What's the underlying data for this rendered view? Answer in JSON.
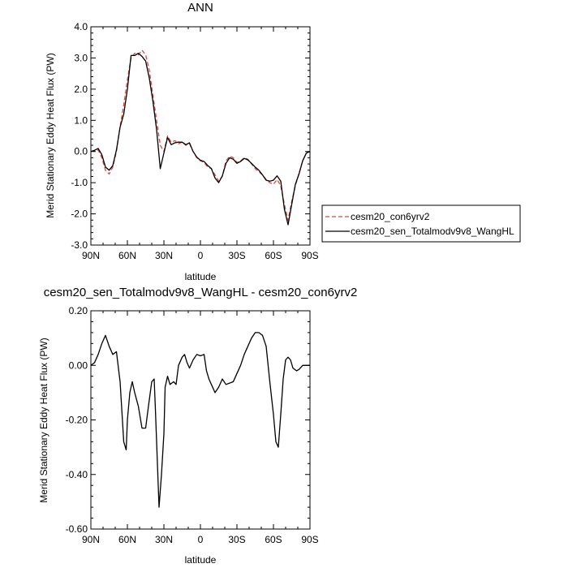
{
  "chart_data": [
    {
      "type": "line",
      "title": "ANN",
      "xlabel": "latitude",
      "ylabel": "Merid Stationary Eddy Heat Flux (PW)",
      "xlim": [
        90,
        -90
      ],
      "ylim": [
        -3.0,
        4.0
      ],
      "x_ticks": [
        90,
        60,
        30,
        0,
        -30,
        -60,
        -90
      ],
      "x_tick_labels": [
        "90N",
        "60N",
        "30N",
        "0",
        "30S",
        "60S",
        "90S"
      ],
      "y_ticks": [
        -3.0,
        -2.0,
        -1.0,
        0.0,
        1.0,
        2.0,
        3.0,
        4.0
      ],
      "y_tick_labels": [
        "-3.0",
        "-2.0",
        "-1.0",
        "0.0",
        "1.0",
        "2.0",
        "3.0",
        "4.0"
      ],
      "legend_position": "right",
      "series": [
        {
          "name": "cesm20_con6yrv2",
          "color": "#e8423c",
          "dash": "dashed",
          "x": [
            90,
            87,
            84,
            81,
            78,
            75,
            72,
            69,
            66,
            63,
            60,
            57,
            54,
            51,
            48,
            45,
            42,
            39,
            36,
            33,
            30,
            27,
            24,
            21,
            18,
            15,
            12,
            9,
            6,
            3,
            0,
            -3,
            -6,
            -9,
            -12,
            -15,
            -18,
            -21,
            -24,
            -27,
            -30,
            -33,
            -36,
            -39,
            -42,
            -45,
            -48,
            -51,
            -54,
            -57,
            -60,
            -63,
            -66,
            -69,
            -72,
            -75,
            -78,
            -81,
            -84,
            -87,
            -90
          ],
          "y": [
            0.0,
            0.02,
            0.05,
            -0.2,
            -0.6,
            -0.72,
            -0.5,
            0.0,
            0.8,
            1.5,
            2.3,
            3.0,
            3.15,
            3.1,
            3.25,
            3.1,
            2.6,
            1.8,
            1.0,
            0.2,
            0.0,
            0.5,
            0.3,
            0.35,
            0.25,
            0.3,
            0.2,
            0.25,
            0.0,
            -0.2,
            -0.3,
            -0.35,
            -0.5,
            -0.55,
            -0.75,
            -0.95,
            -0.8,
            -0.3,
            -0.15,
            -0.2,
            -0.35,
            -0.3,
            -0.2,
            -0.25,
            -0.4,
            -0.55,
            -0.65,
            -0.75,
            -0.9,
            -1.0,
            -1.05,
            -0.9,
            -1.1,
            -1.7,
            -2.2,
            -1.6,
            -1.1,
            -0.7,
            -0.3,
            -0.05,
            0.0
          ]
        },
        {
          "name": "cesm20_sen_Totalmodv9v8_WangHL",
          "color": "#000000",
          "dash": "solid",
          "x": [
            90,
            87,
            84,
            81,
            78,
            75,
            72,
            69,
            66,
            63,
            60,
            57,
            54,
            51,
            48,
            45,
            42,
            39,
            36,
            33,
            30,
            27,
            24,
            21,
            18,
            15,
            12,
            9,
            6,
            3,
            0,
            -3,
            -6,
            -9,
            -12,
            -15,
            -18,
            -21,
            -24,
            -27,
            -30,
            -33,
            -36,
            -39,
            -42,
            -45,
            -48,
            -51,
            -54,
            -57,
            -60,
            -63,
            -66,
            -69,
            -72,
            -75,
            -78,
            -81,
            -84,
            -87,
            -90
          ],
          "y": [
            0.0,
            0.04,
            0.1,
            -0.1,
            -0.5,
            -0.6,
            -0.45,
            0.05,
            0.78,
            1.2,
            2.0,
            3.08,
            3.08,
            3.15,
            3.05,
            2.9,
            2.35,
            1.6,
            0.7,
            -0.55,
            -0.05,
            0.45,
            0.22,
            0.28,
            0.3,
            0.3,
            0.22,
            0.28,
            0.0,
            -0.18,
            -0.28,
            -0.32,
            -0.45,
            -0.55,
            -0.85,
            -1.0,
            -0.78,
            -0.38,
            -0.2,
            -0.25,
            -0.38,
            -0.32,
            -0.22,
            -0.27,
            -0.38,
            -0.5,
            -0.6,
            -0.75,
            -0.92,
            -0.95,
            -0.92,
            -0.78,
            -0.95,
            -1.85,
            -2.35,
            -1.7,
            -1.05,
            -0.72,
            -0.3,
            -0.05,
            0.0
          ]
        }
      ]
    },
    {
      "type": "line",
      "title": "cesm20_sen_Totalmodv9v8_WangHL - cesm20_con6yrv2",
      "xlabel": "latitude",
      "ylabel": "Merid Stationary Eddy Heat Flux (PW)",
      "xlim": [
        90,
        -90
      ],
      "ylim": [
        -0.6,
        0.2
      ],
      "x_ticks": [
        90,
        60,
        30,
        0,
        -30,
        -60,
        -90
      ],
      "x_tick_labels": [
        "90N",
        "60N",
        "30N",
        "0",
        "30S",
        "60S",
        "90S"
      ],
      "y_ticks": [
        -0.6,
        -0.4,
        -0.2,
        0.0,
        0.2
      ],
      "y_tick_labels": [
        "-0.60",
        "-0.40",
        "-0.20",
        "0.00",
        "0.20"
      ],
      "series": [
        {
          "color": "#000000",
          "dash": "solid",
          "x": [
            90,
            87,
            84,
            81,
            78,
            75,
            72,
            69,
            66,
            63,
            61,
            60,
            58,
            57,
            56,
            54,
            51,
            48,
            45,
            43,
            40,
            38,
            37,
            35,
            34,
            32,
            30,
            29,
            27,
            25,
            22,
            20,
            18,
            15,
            13,
            11,
            9,
            6,
            3,
            0,
            -3,
            -5,
            -7,
            -9,
            -12,
            -15,
            -18,
            -21,
            -24,
            -27,
            -30,
            -33,
            -36,
            -39,
            -42,
            -45,
            -48,
            -51,
            -54,
            -57,
            -60,
            -62,
            -64,
            -66,
            -68,
            -70,
            -72,
            -74,
            -76,
            -79,
            -81,
            -84,
            -87,
            -90
          ],
          "y": [
            0.0,
            0.01,
            0.04,
            0.08,
            0.11,
            0.07,
            0.04,
            0.05,
            -0.06,
            -0.28,
            -0.31,
            -0.2,
            -0.1,
            -0.08,
            -0.06,
            -0.1,
            -0.15,
            -0.23,
            -0.23,
            -0.16,
            -0.06,
            -0.05,
            -0.16,
            -0.4,
            -0.52,
            -0.4,
            -0.25,
            -0.08,
            -0.04,
            -0.07,
            -0.06,
            -0.07,
            0.0,
            0.03,
            0.04,
            0.01,
            -0.01,
            0.02,
            0.04,
            0.035,
            0.04,
            -0.02,
            -0.05,
            -0.07,
            -0.1,
            -0.08,
            -0.05,
            -0.07,
            -0.065,
            -0.06,
            -0.03,
            0.0,
            0.04,
            0.07,
            0.1,
            0.12,
            0.12,
            0.11,
            0.07,
            -0.06,
            -0.18,
            -0.28,
            -0.3,
            -0.18,
            -0.05,
            0.02,
            0.03,
            0.02,
            -0.01,
            -0.02,
            -0.015,
            0.0,
            0.0,
            0.0
          ]
        }
      ]
    }
  ]
}
